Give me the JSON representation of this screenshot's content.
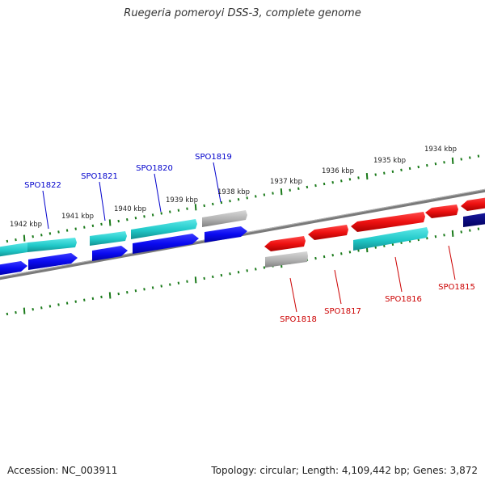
{
  "title": "Ruegeria pomeroyi DSS-3, complete genome",
  "footer": {
    "accession": "Accession: NC_003911",
    "stats": "Topology: circular; Length: 4,109,442 bp; Genes: 3,872"
  },
  "colors": {
    "backbone": "#808080",
    "tick": "#1a7a1a",
    "forward_label": "#0000cc",
    "reverse_label": "#cc0000",
    "blue": "#0a0af0",
    "navy": "#000080",
    "cyan": "#20c8c8",
    "red": "#ee1111",
    "gray": "#b0b0b0"
  },
  "scale_labels": [
    {
      "text": "1934 kbp",
      "kbp": 1934
    },
    {
      "text": "1935 kbp",
      "kbp": 1935
    },
    {
      "text": "1936 kbp",
      "kbp": 1936
    },
    {
      "text": "1937 kbp",
      "kbp": 1937
    },
    {
      "text": "1938 kbp",
      "kbp": 1938
    },
    {
      "text": "1939 kbp",
      "kbp": 1939
    },
    {
      "text": "1940 kbp",
      "kbp": 1940
    },
    {
      "text": "1941 kbp",
      "kbp": 1941
    },
    {
      "text": "1942 kbp",
      "kbp": 1942
    }
  ],
  "gene_labels": [
    {
      "text": "SPO1822",
      "strand": "forward"
    },
    {
      "text": "SPO1821",
      "strand": "forward"
    },
    {
      "text": "SPO1820",
      "strand": "forward"
    },
    {
      "text": "SPO1819",
      "strand": "forward"
    },
    {
      "text": "SPO1818",
      "strand": "reverse"
    },
    {
      "text": "SPO1817",
      "strand": "reverse"
    },
    {
      "text": "SPO1816",
      "strand": "reverse"
    },
    {
      "text": "SPO1815",
      "strand": "reverse"
    }
  ]
}
